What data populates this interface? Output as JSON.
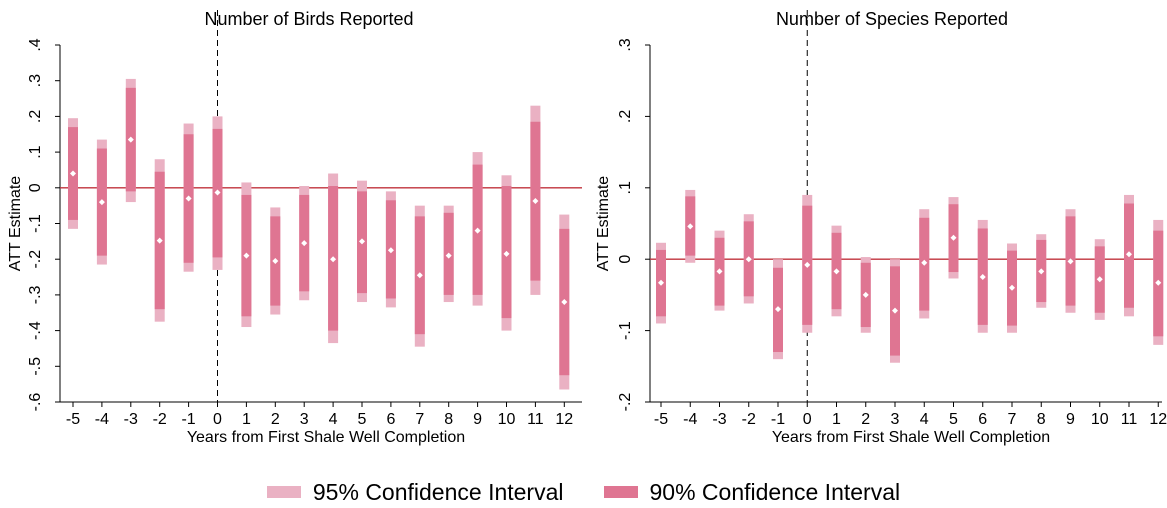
{
  "chart_data": [
    {
      "type": "errorbar",
      "title": "Number of Birds Reported",
      "xlabel": "Years from First Shale Well Completion",
      "ylabel": "ATT Estimate",
      "x": [
        -5,
        -4,
        -3,
        -2,
        -1,
        0,
        1,
        2,
        3,
        4,
        5,
        6,
        7,
        8,
        9,
        10,
        11,
        12
      ],
      "x_tick_labels": [
        "-5",
        "-4",
        "-3",
        "-2",
        "-1",
        "0",
        "1",
        "2",
        "3",
        "4",
        "5",
        "6",
        "7",
        "8",
        "9",
        "10",
        "11",
        "12"
      ],
      "ylim": [
        -0.6,
        0.4
      ],
      "y_ticks": [
        0.4,
        0.3,
        0.2,
        0.1,
        0,
        -0.1,
        -0.2,
        -0.3,
        -0.4,
        -0.5,
        -0.6
      ],
      "y_tick_labels": [
        ".4",
        ".3",
        ".2",
        ".1",
        "0",
        "-.1",
        "-.2",
        "-.3",
        "-.4",
        "-.5",
        "-.6"
      ],
      "reference_line_y": 0,
      "reference_line_x": 0,
      "estimates": [
        0.04,
        -0.04,
        0.135,
        -0.148,
        -0.03,
        -0.013,
        -0.19,
        -0.205,
        -0.155,
        -0.2,
        -0.15,
        -0.175,
        -0.245,
        -0.19,
        -0.12,
        -0.185,
        -0.037,
        -0.32
      ],
      "ci95_low": [
        -0.115,
        -0.215,
        -0.04,
        -0.375,
        -0.235,
        -0.23,
        -0.39,
        -0.355,
        -0.315,
        -0.435,
        -0.32,
        -0.335,
        -0.445,
        -0.32,
        -0.33,
        -0.4,
        -0.3,
        -0.565
      ],
      "ci95_high": [
        0.195,
        0.135,
        0.305,
        0.08,
        0.18,
        0.2,
        0.015,
        -0.055,
        0.005,
        0.04,
        0.02,
        -0.01,
        -0.05,
        -0.05,
        0.1,
        0.035,
        0.23,
        -0.075
      ],
      "ci90_low": [
        -0.09,
        -0.19,
        -0.01,
        -0.34,
        -0.21,
        -0.195,
        -0.36,
        -0.33,
        -0.29,
        -0.4,
        -0.295,
        -0.31,
        -0.41,
        -0.3,
        -0.3,
        -0.365,
        -0.26,
        -0.525
      ],
      "ci90_high": [
        0.17,
        0.11,
        0.28,
        0.045,
        0.15,
        0.165,
        -0.02,
        -0.08,
        -0.02,
        0.005,
        -0.01,
        -0.035,
        -0.08,
        -0.07,
        0.065,
        0.005,
        0.185,
        -0.115
      ]
    },
    {
      "type": "errorbar",
      "title": "Number of Species Reported",
      "xlabel": "Years from First Shale Well Completion",
      "ylabel": "ATT Estimate",
      "x": [
        -5,
        -4,
        -3,
        -2,
        -1,
        0,
        1,
        2,
        3,
        4,
        5,
        6,
        7,
        8,
        9,
        10,
        11,
        12
      ],
      "x_tick_labels": [
        "-5",
        "-4",
        "-3",
        "-2",
        "-1",
        "0",
        "1",
        "2",
        "3",
        "4",
        "5",
        "6",
        "7",
        "8",
        "9",
        "10",
        "11",
        "12"
      ],
      "ylim": [
        -0.2,
        0.3
      ],
      "y_ticks": [
        0.3,
        0.2,
        0.1,
        0,
        -0.1,
        -0.2
      ],
      "y_tick_labels": [
        ".3",
        ".2",
        ".1",
        "0",
        "-.1",
        "-.2"
      ],
      "reference_line_y": 0,
      "reference_line_x": 0,
      "estimates": [
        -0.033,
        0.046,
        -0.017,
        0,
        -0.07,
        -0.008,
        -0.017,
        -0.05,
        -0.072,
        -0.005,
        0.03,
        -0.025,
        -0.04,
        -0.017,
        -0.003,
        -0.028,
        0.007,
        -0.033
      ],
      "ci95_low": [
        -0.09,
        -0.005,
        -0.072,
        -0.062,
        -0.14,
        -0.103,
        -0.08,
        -0.103,
        -0.145,
        -0.083,
        -0.027,
        -0.103,
        -0.103,
        -0.068,
        -0.075,
        -0.085,
        -0.08,
        -0.12
      ],
      "ci95_high": [
        0.023,
        0.097,
        0.04,
        0.063,
        0,
        0.09,
        0.047,
        0.003,
        0,
        0.07,
        0.087,
        0.055,
        0.022,
        0.035,
        0.07,
        0.028,
        0.09,
        0.055
      ],
      "ci90_low": [
        -0.08,
        0.005,
        -0.065,
        -0.052,
        -0.13,
        -0.092,
        -0.07,
        -0.095,
        -0.135,
        -0.072,
        -0.018,
        -0.092,
        -0.093,
        -0.06,
        -0.065,
        -0.075,
        -0.068,
        -0.108
      ],
      "ci90_high": [
        0.013,
        0.088,
        0.03,
        0.053,
        -0.012,
        0.075,
        0.037,
        -0.005,
        -0.01,
        0.058,
        0.077,
        0.043,
        0.012,
        0.027,
        0.06,
        0.018,
        0.078,
        0.04
      ]
    }
  ],
  "legend": {
    "items": [
      {
        "label": "95% Confidence Interval",
        "color": "#eab1c3"
      },
      {
        "label": "90% Confidence Interval",
        "color": "#df7592"
      }
    ]
  },
  "colors": {
    "ci95": "#eab1c3",
    "ci90": "#df7592",
    "estimate_marker": "#ffffff",
    "zero_line": "#c0323c",
    "event_line": "#000000"
  }
}
